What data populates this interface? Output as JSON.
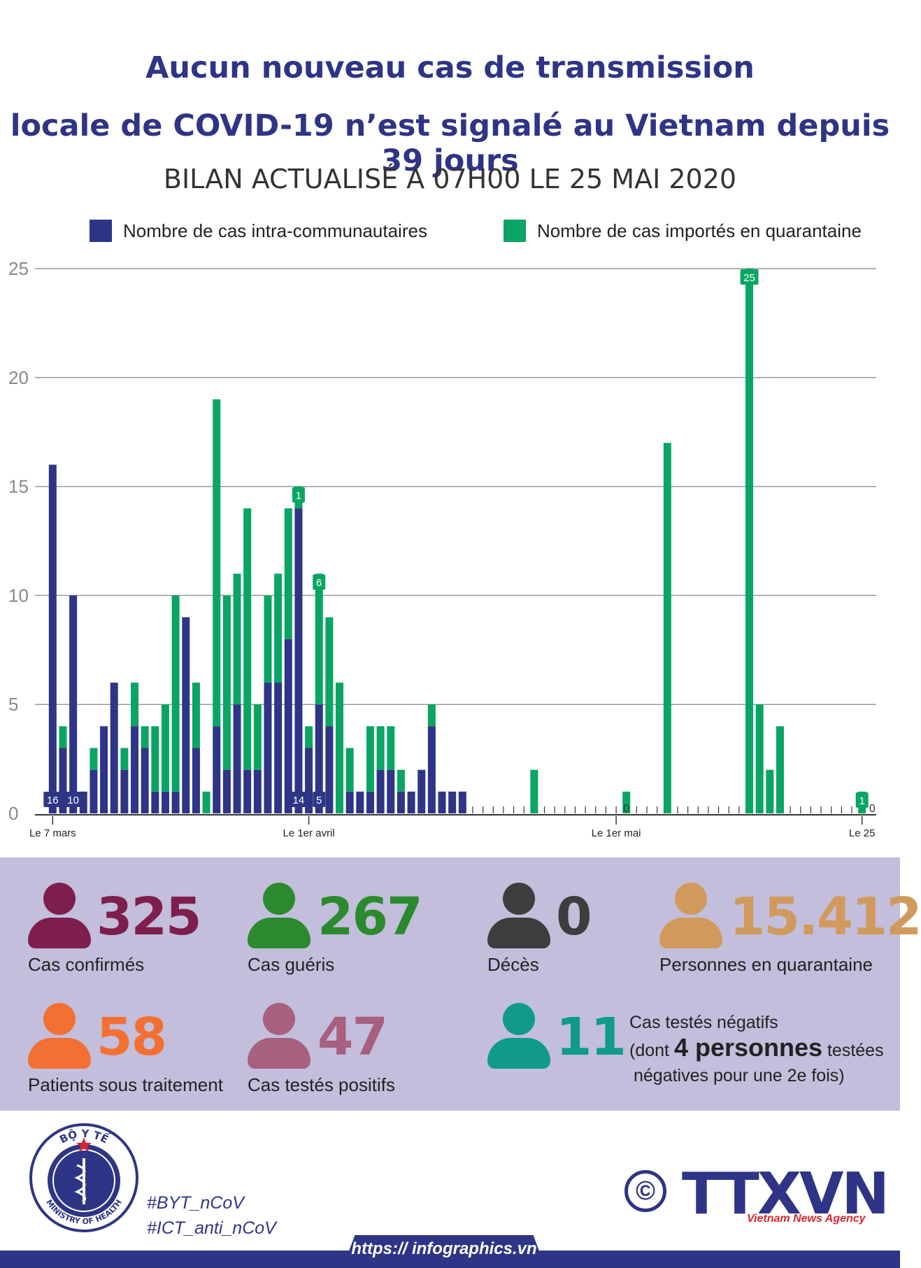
{
  "header": {
    "title_line1": "Aucun nouveau cas de transmission",
    "title_line2": "locale de COVID-19 n’est signalé au Vietnam depuis 39 jours",
    "subtitle": "BILAN ACTUALISÉ A 07H00 LE 25 MAI 2020"
  },
  "colors": {
    "intra": "#2e3586",
    "imported": "#0aa564",
    "grid": "#999999"
  },
  "chart_data": {
    "type": "bar",
    "stacked": true,
    "title": "",
    "xlabel": "",
    "ylabel": "",
    "ylim": [
      0,
      25
    ],
    "yticks": [
      0,
      5,
      10,
      15,
      20,
      25
    ],
    "grid": true,
    "legend_position": "top",
    "x_tick_labels": [
      {
        "index": 0,
        "label": "Le 7 mars"
      },
      {
        "index": 25,
        "label": "Le 1er avril"
      },
      {
        "index": 55,
        "label": "Le 1er mai"
      },
      {
        "index": 79,
        "label": "Le 25"
      }
    ],
    "series": [
      {
        "name": "Nombre de cas intra-communautaires",
        "values": [
          16,
          3,
          10,
          1,
          2,
          4,
          6,
          2,
          4,
          3,
          1,
          1,
          1,
          9,
          3,
          0,
          4,
          2,
          5,
          2,
          2,
          6,
          6,
          8,
          14,
          3,
          5,
          4,
          0,
          1,
          1,
          1,
          2,
          2,
          1,
          1,
          2,
          4,
          1,
          1,
          1,
          0,
          0,
          0,
          0,
          0,
          0,
          0,
          0,
          0,
          0,
          0,
          0,
          0,
          0,
          0,
          0,
          0,
          0,
          0,
          0,
          0,
          0,
          0,
          0,
          0,
          0,
          0,
          0,
          0,
          0,
          0,
          0,
          0,
          0,
          0,
          0,
          0,
          0,
          0
        ]
      },
      {
        "name": "Nombre de cas importés en quarantaine",
        "values": [
          0,
          1,
          0,
          0,
          1,
          0,
          0,
          1,
          2,
          1,
          3,
          4,
          9,
          0,
          3,
          1,
          15,
          8,
          6,
          12,
          3,
          4,
          5,
          6,
          1,
          1,
          6,
          5,
          6,
          2,
          0,
          3,
          2,
          2,
          1,
          0,
          0,
          1,
          0,
          0,
          0,
          0,
          0,
          0,
          0,
          0,
          0,
          2,
          0,
          0,
          0,
          0,
          0,
          0,
          0,
          0,
          1,
          0,
          0,
          0,
          17,
          0,
          0,
          0,
          0,
          0,
          0,
          0,
          25,
          5,
          2,
          4,
          0,
          0,
          0,
          0,
          0,
          0,
          0,
          1
        ]
      }
    ],
    "bar_labels": [
      {
        "index": 0,
        "series": 0,
        "text": "16"
      },
      {
        "index": 2,
        "series": 0,
        "text": "10"
      },
      {
        "index": 24,
        "series": 0,
        "text": "14"
      },
      {
        "index": 26,
        "series": 0,
        "text": "5"
      },
      {
        "index": 24,
        "series": 1,
        "text": "1"
      },
      {
        "index": 26,
        "series": 1,
        "text": "6"
      },
      {
        "index": 68,
        "series": 1,
        "text": "25"
      },
      {
        "index": 79,
        "series": 1,
        "text": "1"
      }
    ],
    "zero_labels": [
      {
        "index": 56,
        "text": "0"
      },
      {
        "index": 80,
        "text": "0"
      }
    ]
  },
  "stats": {
    "confirmed": {
      "value": "325",
      "label": "Cas confirmés",
      "color": "#7e1e4c"
    },
    "recovered": {
      "value": "267",
      "label": "Cas guéris",
      "color": "#2c8a2e"
    },
    "deaths": {
      "value": "0",
      "label": "Décès",
      "color": "#3d3d3d"
    },
    "quarantine": {
      "value": "15.412",
      "label": "Personnes en quarantaine",
      "color": "#d19a5c"
    },
    "treatment": {
      "value": "58",
      "label": "Patients sous traitement",
      "color": "#f37032"
    },
    "positive": {
      "value": "47",
      "label": "Cas testés positifs",
      "color": "#a8607f"
    },
    "negative": {
      "value": "11",
      "color": "#109a8a",
      "line1": "Cas testés négatifs",
      "line2_pre": "(dont",
      "line2_big": "4 personnes",
      "line2_post": "testées",
      "line3": "négatives pour une 2e fois)"
    }
  },
  "footer": {
    "ministry_top": "BỘ Y TẾ",
    "ministry_bottom": "MINISTRY OF HEALTH",
    "hashtag1": "#BYT_nCoV",
    "hashtag2": "#ICT_anti_nCoV",
    "copyright": "©",
    "brand": "TTXVN",
    "brand_sub": "Vietnam News Agency",
    "url": "https:// infographics.vn"
  }
}
